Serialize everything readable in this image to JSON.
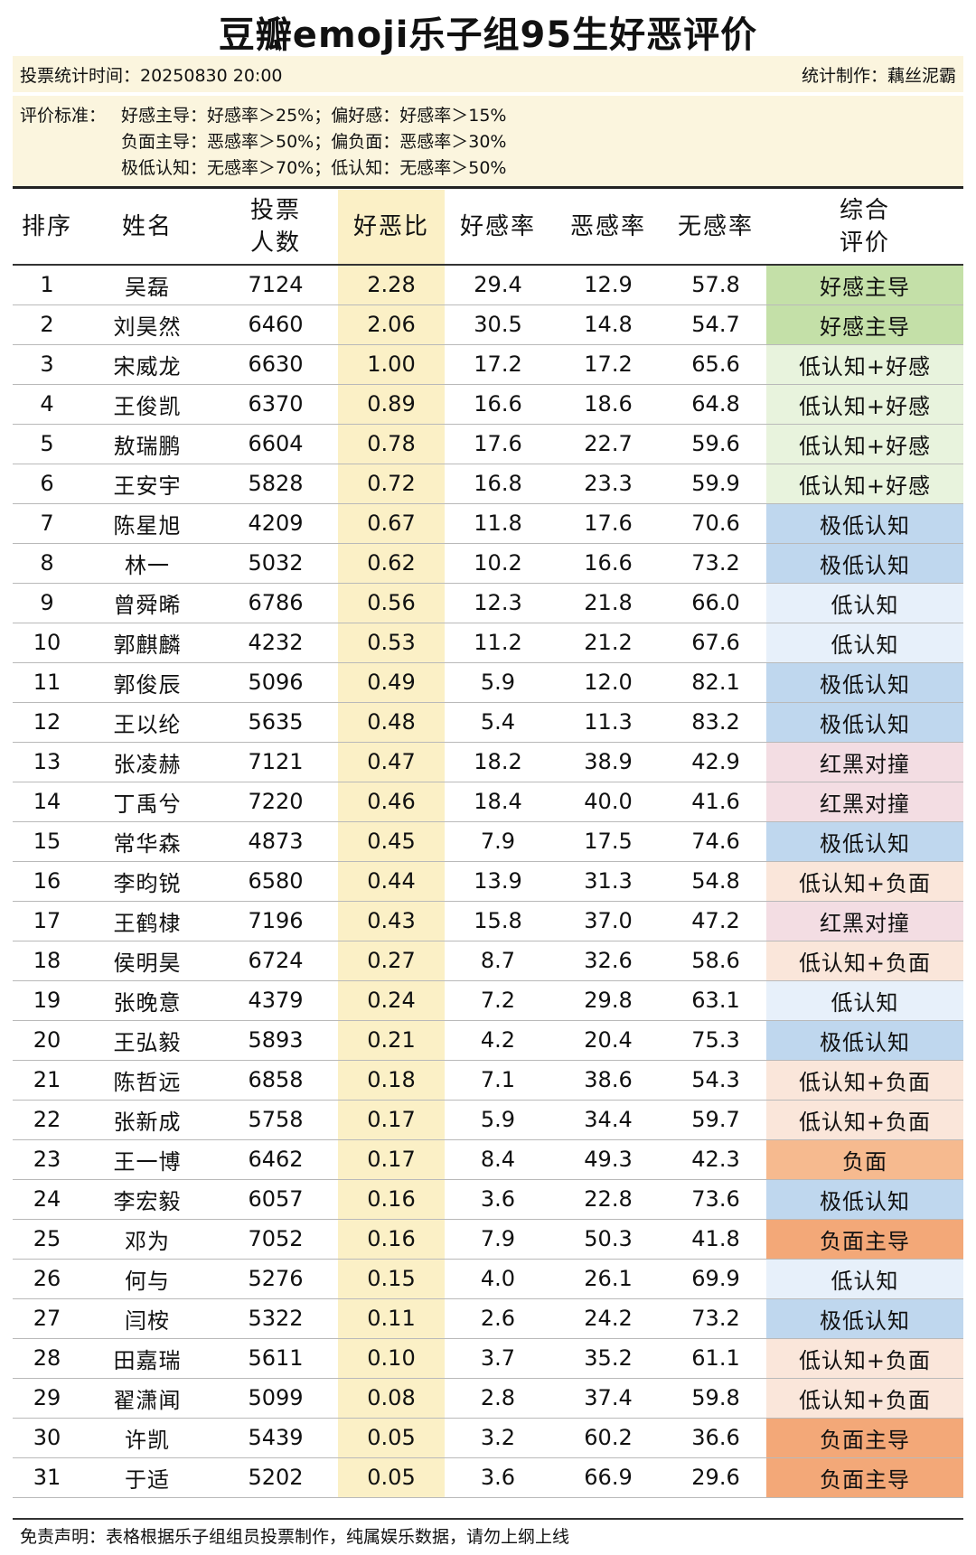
{
  "title": "豆瓣emoji乐子组95生好恶评价",
  "meta": {
    "vote_time": "投票统计时间：20250830 20:00",
    "author": "统计制作：藕丝泥霸"
  },
  "criteria": [
    {
      "label": "评价标准：",
      "text": "好感主导：好感率＞25%；偏好感：好感率＞15%"
    },
    {
      "label": "",
      "text": "负面主导：恶感率＞50%；偏负面：恶感率＞30%"
    },
    {
      "label": "",
      "text": "极低认知：无感率＞70%；低认知：无感率＞50%"
    }
  ],
  "headers": {
    "rank": "排序",
    "name": "姓名",
    "votes_1": "投票",
    "votes_2": "人数",
    "ratio": "好恶比",
    "like": "好感率",
    "dislike": "恶感率",
    "neutral": "无感率",
    "eval_1": "综合",
    "eval_2": "评价"
  },
  "eval_colors": {
    "好感主导": "#c4e0a8",
    "低认知+好感": "#e8f3dd",
    "极低认知": "#bfd7ee",
    "低认知": "#e7f0fa",
    "红黑对撞": "#f3dde3",
    "低认知+负面": "#fae6da",
    "负面": "#f6ba8f",
    "负面主导": "#f3a878"
  },
  "rows": [
    {
      "rank": "1",
      "name": "吴磊",
      "votes": "7124",
      "ratio": "2.28",
      "like": "29.4",
      "dislike": "12.9",
      "neutral": "57.8",
      "eval": "好感主导"
    },
    {
      "rank": "2",
      "name": "刘昊然",
      "votes": "6460",
      "ratio": "2.06",
      "like": "30.5",
      "dislike": "14.8",
      "neutral": "54.7",
      "eval": "好感主导"
    },
    {
      "rank": "3",
      "name": "宋威龙",
      "votes": "6630",
      "ratio": "1.00",
      "like": "17.2",
      "dislike": "17.2",
      "neutral": "65.6",
      "eval": "低认知+好感"
    },
    {
      "rank": "4",
      "name": "王俊凯",
      "votes": "6370",
      "ratio": "0.89",
      "like": "16.6",
      "dislike": "18.6",
      "neutral": "64.8",
      "eval": "低认知+好感"
    },
    {
      "rank": "5",
      "name": "敖瑞鹏",
      "votes": "6604",
      "ratio": "0.78",
      "like": "17.6",
      "dislike": "22.7",
      "neutral": "59.6",
      "eval": "低认知+好感"
    },
    {
      "rank": "6",
      "name": "王安宇",
      "votes": "5828",
      "ratio": "0.72",
      "like": "16.8",
      "dislike": "23.3",
      "neutral": "59.9",
      "eval": "低认知+好感"
    },
    {
      "rank": "7",
      "name": "陈星旭",
      "votes": "4209",
      "ratio": "0.67",
      "like": "11.8",
      "dislike": "17.6",
      "neutral": "70.6",
      "eval": "极低认知"
    },
    {
      "rank": "8",
      "name": "林一",
      "votes": "5032",
      "ratio": "0.62",
      "like": "10.2",
      "dislike": "16.6",
      "neutral": "73.2",
      "eval": "极低认知"
    },
    {
      "rank": "9",
      "name": "曾舜晞",
      "votes": "6786",
      "ratio": "0.56",
      "like": "12.3",
      "dislike": "21.8",
      "neutral": "66.0",
      "eval": "低认知"
    },
    {
      "rank": "10",
      "name": "郭麒麟",
      "votes": "4232",
      "ratio": "0.53",
      "like": "11.2",
      "dislike": "21.2",
      "neutral": "67.6",
      "eval": "低认知"
    },
    {
      "rank": "11",
      "name": "郭俊辰",
      "votes": "5096",
      "ratio": "0.49",
      "like": "5.9",
      "dislike": "12.0",
      "neutral": "82.1",
      "eval": "极低认知"
    },
    {
      "rank": "12",
      "name": "王以纶",
      "votes": "5635",
      "ratio": "0.48",
      "like": "5.4",
      "dislike": "11.3",
      "neutral": "83.2",
      "eval": "极低认知"
    },
    {
      "rank": "13",
      "name": "张凌赫",
      "votes": "7121",
      "ratio": "0.47",
      "like": "18.2",
      "dislike": "38.9",
      "neutral": "42.9",
      "eval": "红黑对撞"
    },
    {
      "rank": "14",
      "name": "丁禹兮",
      "votes": "7220",
      "ratio": "0.46",
      "like": "18.4",
      "dislike": "40.0",
      "neutral": "41.6",
      "eval": "红黑对撞"
    },
    {
      "rank": "15",
      "name": "常华森",
      "votes": "4873",
      "ratio": "0.45",
      "like": "7.9",
      "dislike": "17.5",
      "neutral": "74.6",
      "eval": "极低认知"
    },
    {
      "rank": "16",
      "name": "李昀锐",
      "votes": "6580",
      "ratio": "0.44",
      "like": "13.9",
      "dislike": "31.3",
      "neutral": "54.8",
      "eval": "低认知+负面"
    },
    {
      "rank": "17",
      "name": "王鹤棣",
      "votes": "7196",
      "ratio": "0.43",
      "like": "15.8",
      "dislike": "37.0",
      "neutral": "47.2",
      "eval": "红黑对撞"
    },
    {
      "rank": "18",
      "name": "侯明昊",
      "votes": "6724",
      "ratio": "0.27",
      "like": "8.7",
      "dislike": "32.6",
      "neutral": "58.6",
      "eval": "低认知+负面"
    },
    {
      "rank": "19",
      "name": "张晚意",
      "votes": "4379",
      "ratio": "0.24",
      "like": "7.2",
      "dislike": "29.8",
      "neutral": "63.1",
      "eval": "低认知"
    },
    {
      "rank": "20",
      "name": "王弘毅",
      "votes": "5893",
      "ratio": "0.21",
      "like": "4.2",
      "dislike": "20.4",
      "neutral": "75.3",
      "eval": "极低认知"
    },
    {
      "rank": "21",
      "name": "陈哲远",
      "votes": "6858",
      "ratio": "0.18",
      "like": "7.1",
      "dislike": "38.6",
      "neutral": "54.3",
      "eval": "低认知+负面"
    },
    {
      "rank": "22",
      "name": "张新成",
      "votes": "5758",
      "ratio": "0.17",
      "like": "5.9",
      "dislike": "34.4",
      "neutral": "59.7",
      "eval": "低认知+负面"
    },
    {
      "rank": "23",
      "name": "王一博",
      "votes": "6462",
      "ratio": "0.17",
      "like": "8.4",
      "dislike": "49.3",
      "neutral": "42.3",
      "eval": "负面"
    },
    {
      "rank": "24",
      "name": "李宏毅",
      "votes": "6057",
      "ratio": "0.16",
      "like": "3.6",
      "dislike": "22.8",
      "neutral": "73.6",
      "eval": "极低认知"
    },
    {
      "rank": "25",
      "name": "邓为",
      "votes": "7052",
      "ratio": "0.16",
      "like": "7.9",
      "dislike": "50.3",
      "neutral": "41.8",
      "eval": "负面主导"
    },
    {
      "rank": "26",
      "name": "何与",
      "votes": "5276",
      "ratio": "0.15",
      "like": "4.0",
      "dislike": "26.1",
      "neutral": "69.9",
      "eval": "低认知"
    },
    {
      "rank": "27",
      "name": "闫桉",
      "votes": "5322",
      "ratio": "0.11",
      "like": "2.6",
      "dislike": "24.2",
      "neutral": "73.2",
      "eval": "极低认知"
    },
    {
      "rank": "28",
      "name": "田嘉瑞",
      "votes": "5611",
      "ratio": "0.10",
      "like": "3.7",
      "dislike": "35.2",
      "neutral": "61.1",
      "eval": "低认知+负面"
    },
    {
      "rank": "29",
      "name": "翟潇闻",
      "votes": "5099",
      "ratio": "0.08",
      "like": "2.8",
      "dislike": "37.4",
      "neutral": "59.8",
      "eval": "低认知+负面"
    },
    {
      "rank": "30",
      "name": "许凯",
      "votes": "5439",
      "ratio": "0.05",
      "like": "3.2",
      "dislike": "60.2",
      "neutral": "36.6",
      "eval": "负面主导"
    },
    {
      "rank": "31",
      "name": "于适",
      "votes": "5202",
      "ratio": "0.05",
      "like": "3.6",
      "dislike": "66.9",
      "neutral": "29.6",
      "eval": "负面主导"
    }
  ],
  "footer": "免责声明：表格根据乐子组组员投票制作，纯属娱乐数据，请勿上纲上线"
}
